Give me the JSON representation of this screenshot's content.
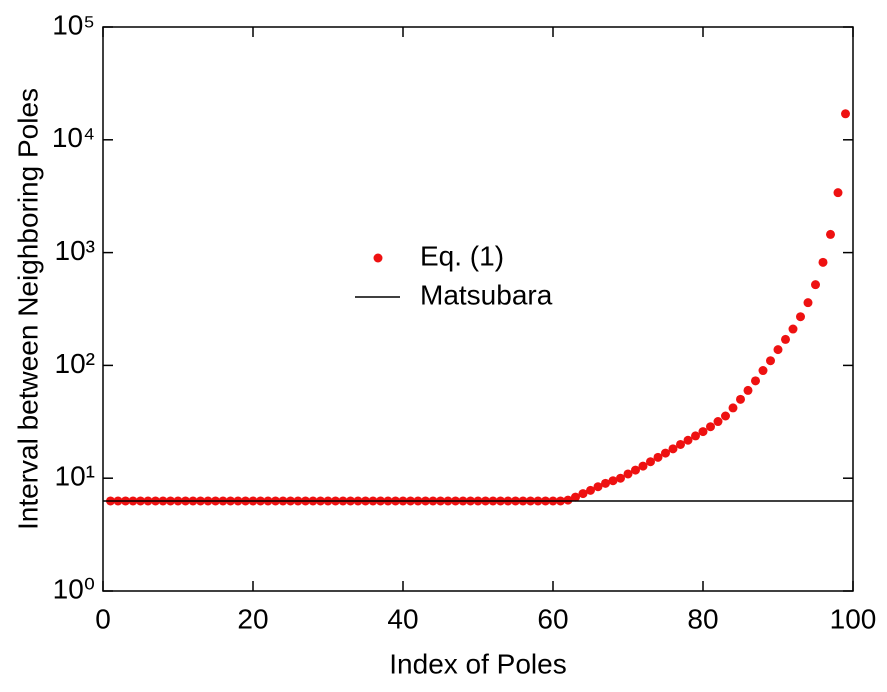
{
  "chart_data": {
    "type": "scatter",
    "xlabel": "Index of Poles",
    "ylabel": "Interval between Neighboring Poles",
    "xlim": [
      0,
      100
    ],
    "xticks": [
      0,
      20,
      40,
      60,
      80,
      100
    ],
    "ylim": [
      1,
      100000
    ],
    "log_y": true,
    "yticks": [
      {
        "value": 1,
        "label": "10⁰"
      },
      {
        "value": 10,
        "label": "10¹"
      },
      {
        "value": 100,
        "label": "10²"
      },
      {
        "value": 1000,
        "label": "10³"
      },
      {
        "value": 10000,
        "label": "10⁴"
      },
      {
        "value": 100000,
        "label": "10⁵"
      }
    ],
    "legend": "center",
    "series": [
      {
        "name": "Eq. (1)",
        "color": "#ee1111",
        "type": "scatter",
        "x": [
          1,
          2,
          3,
          4,
          5,
          6,
          7,
          8,
          9,
          10,
          11,
          12,
          13,
          14,
          15,
          16,
          17,
          18,
          19,
          20,
          21,
          22,
          23,
          24,
          25,
          26,
          27,
          28,
          29,
          30,
          31,
          32,
          33,
          34,
          35,
          36,
          37,
          38,
          39,
          40,
          41,
          42,
          43,
          44,
          45,
          46,
          47,
          48,
          49,
          50,
          51,
          52,
          53,
          54,
          55,
          56,
          57,
          58,
          59,
          60,
          61,
          62,
          63,
          64,
          65,
          66,
          67,
          68,
          69,
          70,
          71,
          72,
          73,
          74,
          75,
          76,
          77,
          78,
          79,
          80,
          81,
          82,
          83,
          84,
          85,
          86,
          87,
          88,
          89,
          90,
          91,
          92,
          93,
          94,
          95,
          96,
          97,
          98,
          99
        ],
        "values": [
          6.28,
          6.28,
          6.28,
          6.28,
          6.28,
          6.28,
          6.28,
          6.28,
          6.28,
          6.28,
          6.28,
          6.28,
          6.28,
          6.28,
          6.28,
          6.28,
          6.28,
          6.28,
          6.28,
          6.28,
          6.28,
          6.28,
          6.28,
          6.28,
          6.28,
          6.28,
          6.28,
          6.28,
          6.28,
          6.28,
          6.28,
          6.28,
          6.28,
          6.28,
          6.28,
          6.28,
          6.28,
          6.28,
          6.28,
          6.28,
          6.28,
          6.28,
          6.28,
          6.28,
          6.28,
          6.28,
          6.28,
          6.28,
          6.28,
          6.28,
          6.28,
          6.28,
          6.28,
          6.28,
          6.28,
          6.28,
          6.28,
          6.28,
          6.28,
          6.28,
          6.28,
          6.4,
          6.8,
          7.3,
          7.8,
          8.4,
          9.0,
          9.5,
          10,
          10.9,
          11.8,
          12.8,
          14,
          15.3,
          16.7,
          18.2,
          19.9,
          21.7,
          23.7,
          25.9,
          28.6,
          31.8,
          35.6,
          42,
          50,
          60,
          73,
          90,
          110,
          138,
          170,
          210,
          270,
          360,
          520,
          820,
          1450,
          3400,
          17000
        ]
      },
      {
        "name": "Matsubara",
        "color": "#000000",
        "type": "line",
        "x": [
          0,
          100
        ],
        "values": [
          6.28,
          6.28
        ]
      }
    ]
  }
}
